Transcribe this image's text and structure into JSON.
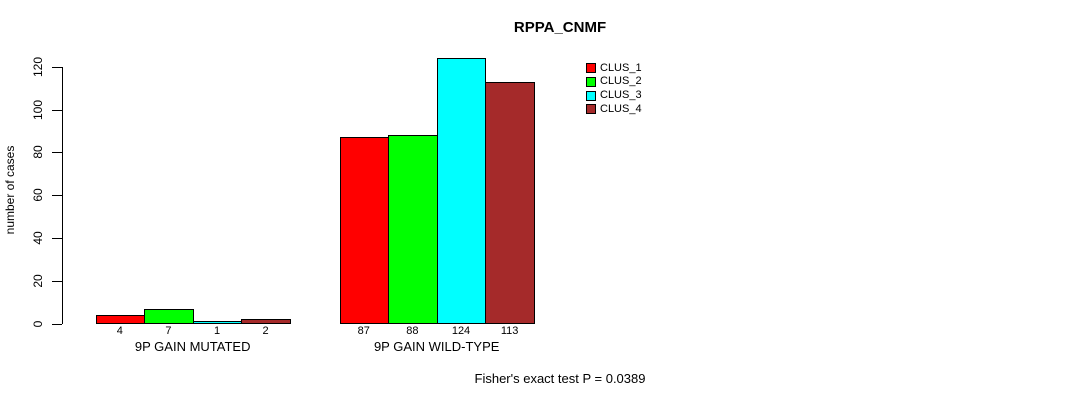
{
  "chart_data": {
    "type": "bar",
    "title": "RPPA_CNMF",
    "categories": [
      "9P GAIN MUTATED",
      "9P GAIN WILD-TYPE"
    ],
    "series": [
      {
        "name": "CLUS_1",
        "color": "#FF0000",
        "values": [
          4,
          87
        ]
      },
      {
        "name": "CLUS_2",
        "color": "#00FF00",
        "values": [
          7,
          88
        ]
      },
      {
        "name": "CLUS_3",
        "color": "#00FFFF",
        "values": [
          1,
          124
        ]
      },
      {
        "name": "CLUS_4",
        "color": "#A52A2A",
        "values": [
          2,
          113
        ]
      }
    ],
    "xlabel": "",
    "ylabel": "number of cases",
    "ylim": [
      0,
      130
    ],
    "yticks": [
      0,
      20,
      40,
      60,
      80,
      100,
      120
    ],
    "bar_value_labels": [
      [
        "4",
        "7",
        "1",
        "2"
      ],
      [
        "87",
        "88",
        "124",
        "113"
      ]
    ],
    "legend_position": "top-right",
    "legend_entries": [
      "CLUS_1",
      "CLUS_2",
      "CLUS_3",
      "CLUS_4"
    ],
    "grid": false,
    "annotation": "Fisher's exact test P = 0.0389"
  }
}
